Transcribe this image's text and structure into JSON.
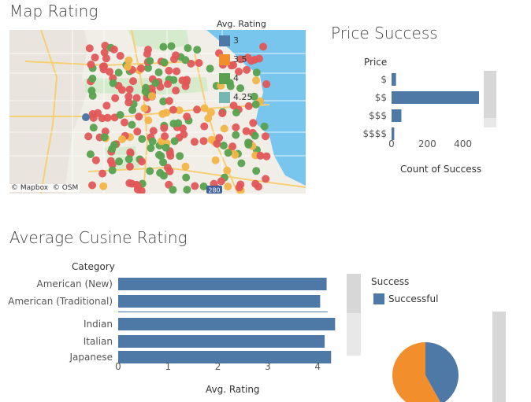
{
  "map": {
    "title": "Map Rating",
    "legend_title": "Avg. Rating",
    "legend": [
      {
        "label": "3",
        "color": "#4e79a7"
      },
      {
        "label": "3.5",
        "color": "#f28e2b"
      },
      {
        "label": "4",
        "color": "#59a14f"
      },
      {
        "label": "4.25",
        "color": "#76b7b2"
      }
    ],
    "attribution": "© Mapbox  © OSM",
    "road_shield": "280",
    "colors": {
      "water": "#78c5ee",
      "land": "#f1eee8",
      "park": "#d6ebcd",
      "road": "#f7cf73"
    }
  },
  "price_chart": {
    "title": "Price Success",
    "header": "Price",
    "xlabel": "Count of Success"
  },
  "cuisine_chart": {
    "title": "Average Cusine Rating",
    "header": "Category",
    "xlabel": "Avg. Rating"
  },
  "success_legend": {
    "title": "Success",
    "items": [
      {
        "label": "Successful",
        "color": "#4e79a7"
      }
    ]
  },
  "chart_data": [
    {
      "type": "bar",
      "orientation": "horizontal",
      "title": "Price Success",
      "categories": [
        "$",
        "$$",
        "$$$",
        "$$$$"
      ],
      "values": [
        25,
        490,
        55,
        15
      ],
      "xlabel": "Count of Success",
      "ylabel": "Price",
      "xticks": [
        0,
        200,
        400
      ],
      "xlim": [
        0,
        530
      ],
      "color": "#4e79a7"
    },
    {
      "type": "bar",
      "orientation": "horizontal",
      "title": "Average Cusine Rating",
      "categories": [
        "American (New)",
        "American (Traditional)",
        "",
        "Indian",
        "Italian",
        "Japanese"
      ],
      "values": [
        4.18,
        4.05,
        4.2,
        4.35,
        4.14,
        4.27
      ],
      "xlabel": "Avg. Rating",
      "ylabel": "Category",
      "xticks": [
        0,
        1,
        2,
        3,
        4
      ],
      "xlim": [
        0,
        4.5
      ],
      "color": "#4e79a7"
    },
    {
      "type": "pie",
      "slices": [
        {
          "label": "Successful",
          "value": 42,
          "color": "#4e79a7"
        },
        {
          "label": "",
          "value": 58,
          "color": "#f28e2b"
        }
      ]
    }
  ]
}
